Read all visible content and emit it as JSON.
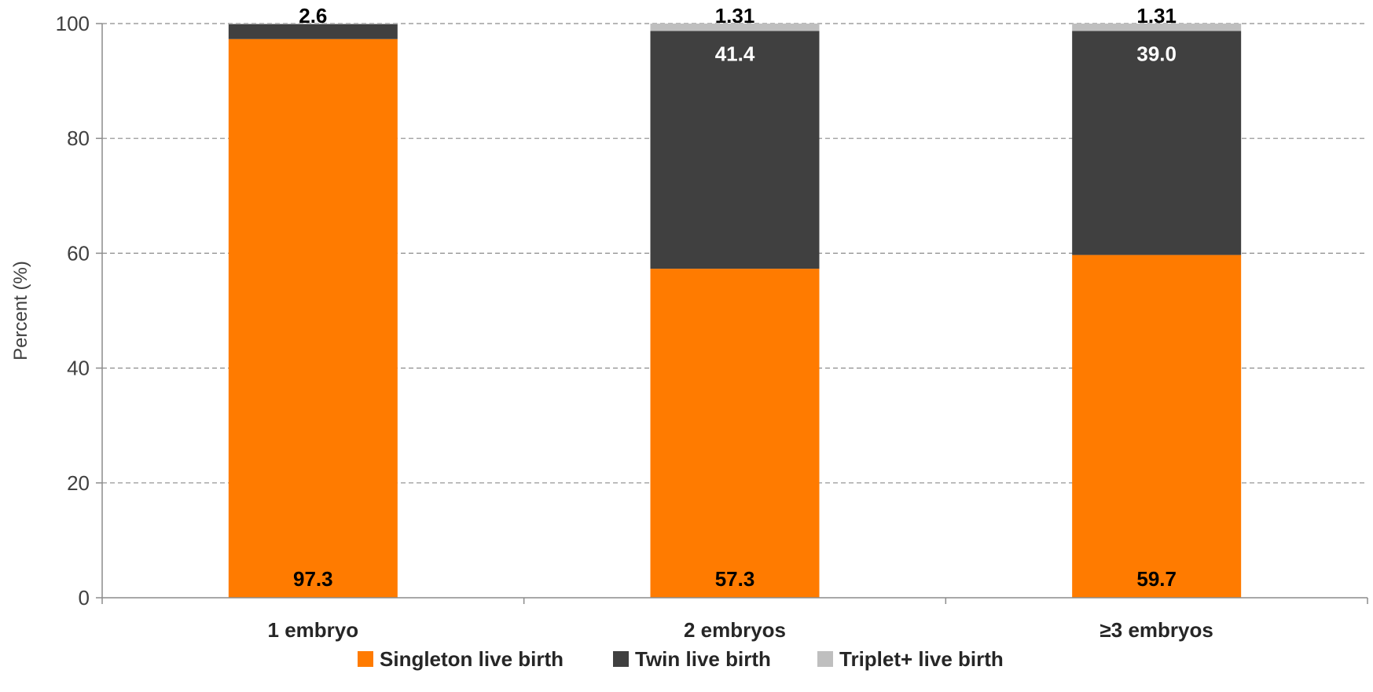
{
  "chart_data": {
    "type": "bar",
    "stacked": true,
    "categories": [
      "1 embryo",
      "2 embryos",
      "≥3 embryos"
    ],
    "series": [
      {
        "name": "Singleton live birth",
        "color": "#FF7B00",
        "values": [
          97.3,
          57.3,
          59.7
        ],
        "labels": [
          "97.3",
          "57.3",
          "59.7"
        ],
        "label_color": "#000000",
        "label_position": "bottom"
      },
      {
        "name": "Twin live birth",
        "color": "#404040",
        "values": [
          2.6,
          41.4,
          39.0
        ],
        "labels": [
          "2.6",
          "41.4",
          "39.0"
        ],
        "label_color": "#FFFFFF",
        "label_position": "top-inside"
      },
      {
        "name": "Triplet+ live birth",
        "color": "#BFBFBF",
        "values": [
          0.1,
          1.31,
          1.31
        ],
        "labels": [
          "",
          "1.31",
          "1.31"
        ],
        "label_color": "#000000",
        "label_position": "top"
      }
    ],
    "title": "",
    "xlabel": "",
    "ylabel": "Percent (%)",
    "ylim": [
      0,
      100
    ],
    "yticks": [
      0,
      20,
      40,
      60,
      80,
      100
    ],
    "grid": "horizontal-dashed",
    "legend_position": "bottom"
  }
}
